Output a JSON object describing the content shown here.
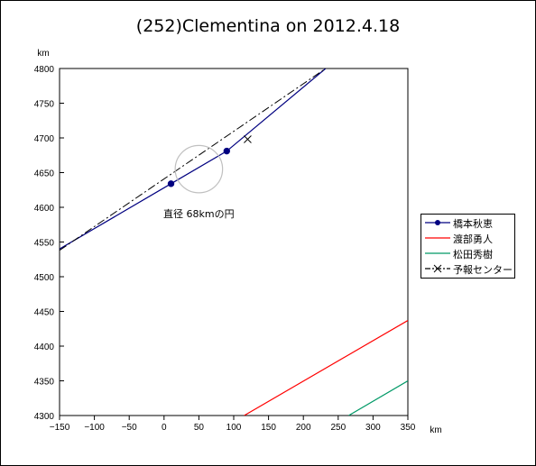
{
  "title": "(252)Clementina on 2012.4.18",
  "chart_data": {
    "type": "line",
    "title": "(252)Clementina on 2012.4.18",
    "xlabel": "km",
    "ylabel": "km",
    "xlim": [
      -150,
      350
    ],
    "ylim": [
      4300,
      4800
    ],
    "x_ticks": [
      -150,
      -100,
      -50,
      0,
      50,
      100,
      150,
      200,
      250,
      300,
      350
    ],
    "y_ticks": [
      4300,
      4350,
      4400,
      4450,
      4500,
      4550,
      4600,
      4650,
      4700,
      4750,
      4800
    ],
    "grid": false,
    "legend_position": "right",
    "series": [
      {
        "name": "橋本秋恵",
        "color": "#000080",
        "x": [
          -150,
          10,
          90,
          232
        ],
        "y": [
          4540,
          4634,
          4681,
          4800
        ],
        "markers": [
          [
            10,
            4634
          ],
          [
            90,
            4681
          ]
        ]
      },
      {
        "name": "渡部勇人",
        "color": "#ff0000",
        "x": [
          115,
          350
        ],
        "y": [
          4300,
          4437
        ]
      },
      {
        "name": "松田秀樹",
        "color": "#009966",
        "x": [
          265,
          350
        ],
        "y": [
          4300,
          4350
        ]
      },
      {
        "name": "予報センター",
        "color": "#000000",
        "x": [
          -150,
          232
        ],
        "y": [
          4538,
          4800
        ],
        "markers": [
          [
            120,
            4698
          ]
        ]
      }
    ],
    "annotations": [
      {
        "text": "直径 68kmの円",
        "circle_center": [
          50,
          4655
        ],
        "circle_diameter_km": 68
      }
    ]
  }
}
